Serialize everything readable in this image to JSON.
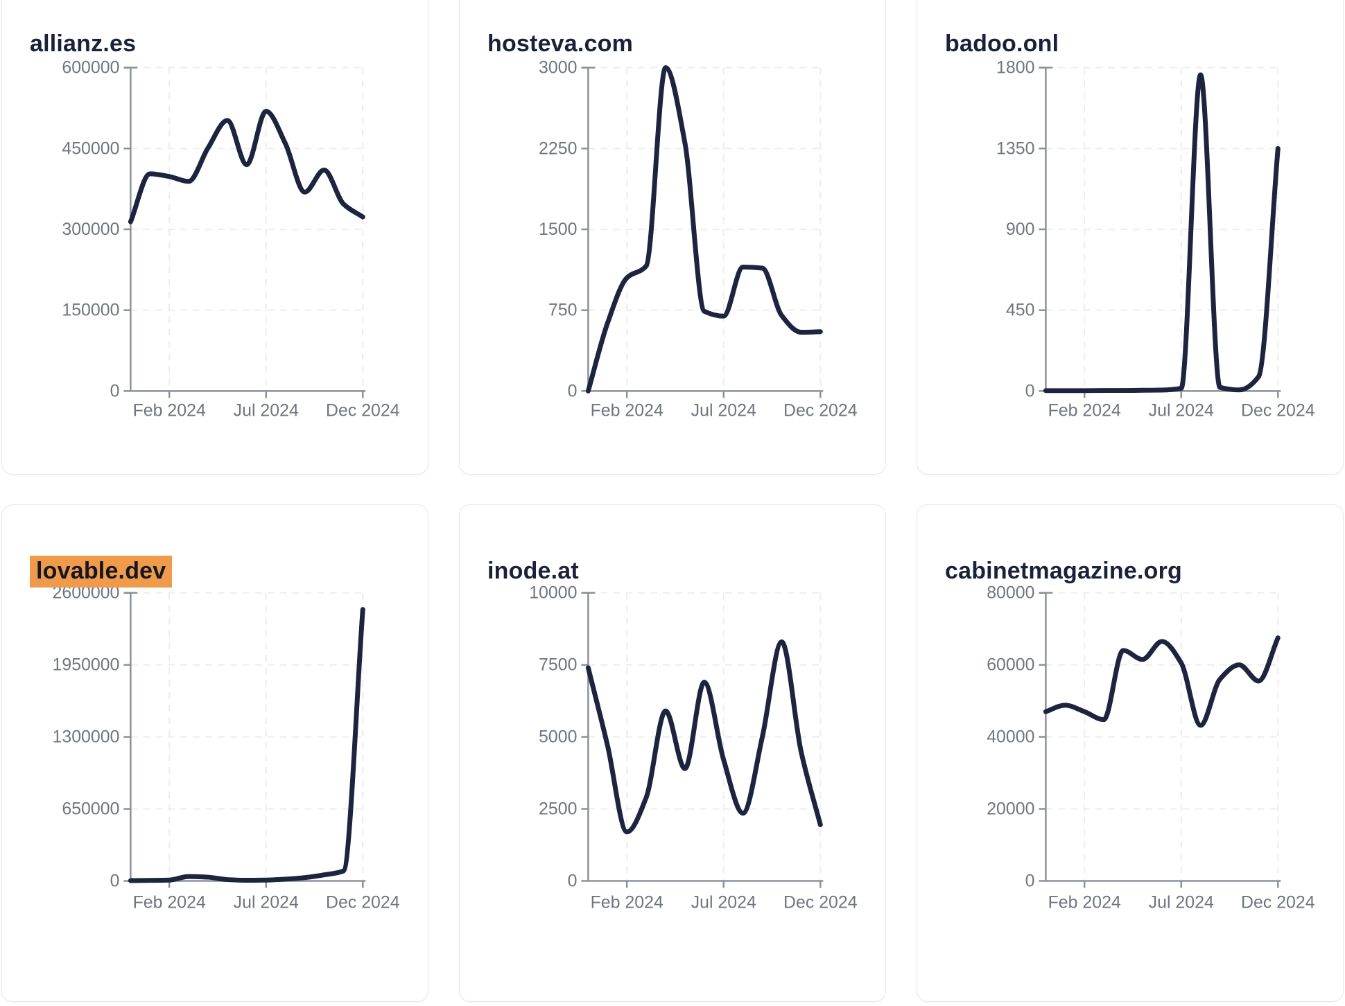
{
  "page": {
    "background": "#ffffff",
    "highlight_color": "#f09a4b",
    "line_color": "#1d2440",
    "axis_color": "#8b909b",
    "tick_text_color": "#6f7580",
    "grid_color": "#ededf0",
    "title_color": "#1a2138"
  },
  "chart_data": [
    {
      "type": "line",
      "title": "allianz.es",
      "title_highlighted": false,
      "row": 1,
      "x": [
        "Dec 2023",
        "Jan 2024",
        "Feb 2024",
        "Mar 2024",
        "Apr 2024",
        "May 2024",
        "Jun 2024",
        "Jul 2024",
        "Aug 2024",
        "Sep 2024",
        "Oct 2024",
        "Nov 2024",
        "Dec 2024"
      ],
      "values": [
        314000,
        403000,
        398000,
        389000,
        451000,
        502000,
        420000,
        519000,
        459000,
        369000,
        410000,
        347000,
        323000
      ],
      "x_tick_labels": [
        "Feb 2024",
        "Jul 2024",
        "Dec 2024"
      ],
      "x_tick_month_index": [
        2,
        7,
        12
      ],
      "yticks": [
        0,
        150000,
        300000,
        450000,
        600000
      ],
      "ylim": [
        0,
        600000
      ],
      "grid": "dashed",
      "legend": "none"
    },
    {
      "type": "line",
      "title": "hosteva.com",
      "title_highlighted": false,
      "row": 1,
      "x": [
        "Dec 2023",
        "Jan 2024",
        "Feb 2024",
        "Mar 2024",
        "Apr 2024",
        "May 2024",
        "Jun 2024",
        "Jul 2024",
        "Aug 2024",
        "Sep 2024",
        "Oct 2024",
        "Nov 2024",
        "Dec 2024"
      ],
      "values": [
        0,
        630,
        1050,
        1160,
        3000,
        2300,
        740,
        695,
        1150,
        1140,
        700,
        545,
        550
      ],
      "x_tick_labels": [
        "Feb 2024",
        "Jul 2024",
        "Dec 2024"
      ],
      "x_tick_month_index": [
        2,
        7,
        12
      ],
      "yticks": [
        0,
        750,
        1500,
        2250,
        3000
      ],
      "ylim": [
        0,
        3000
      ],
      "grid": "dashed",
      "legend": "none"
    },
    {
      "type": "line",
      "title": "badoo.onl",
      "title_highlighted": false,
      "row": 1,
      "x": [
        "Dec 2023",
        "Jan 2024",
        "Feb 2024",
        "Mar 2024",
        "Apr 2024",
        "May 2024",
        "Jun 2024",
        "Jul 2024",
        "Aug 2024",
        "Sep 2024",
        "Oct 2024",
        "Nov 2024",
        "Dec 2024"
      ],
      "values": [
        2,
        2,
        2,
        3,
        3,
        4,
        5,
        15,
        1760,
        20,
        6,
        80,
        1350
      ],
      "x_tick_labels": [
        "Feb 2024",
        "Jul 2024",
        "Dec 2024"
      ],
      "x_tick_month_index": [
        2,
        7,
        12
      ],
      "yticks": [
        0,
        450,
        900,
        1350,
        1800
      ],
      "ylim": [
        0,
        1800
      ],
      "grid": "dashed",
      "legend": "none"
    },
    {
      "type": "line",
      "title": "lovable.dev",
      "title_highlighted": true,
      "row": 2,
      "x": [
        "Dec 2023",
        "Jan 2024",
        "Feb 2024",
        "Mar 2024",
        "Apr 2024",
        "May 2024",
        "Jun 2024",
        "Jul 2024",
        "Aug 2024",
        "Sep 2024",
        "Oct 2024",
        "Nov 2024",
        "Dec 2024"
      ],
      "values": [
        3000,
        5000,
        8000,
        40000,
        34000,
        12000,
        6000,
        8000,
        16000,
        30000,
        55000,
        90000,
        2450000
      ],
      "x_tick_labels": [
        "Feb 2024",
        "Jul 2024",
        "Dec 2024"
      ],
      "x_tick_month_index": [
        2,
        7,
        12
      ],
      "yticks": [
        0,
        650000,
        1300000,
        1950000,
        2600000
      ],
      "ylim": [
        0,
        2600000
      ],
      "grid": "dashed",
      "legend": "none"
    },
    {
      "type": "line",
      "title": "inode.at",
      "title_highlighted": false,
      "row": 2,
      "x": [
        "Dec 2023",
        "Jan 2024",
        "Feb 2024",
        "Mar 2024",
        "Apr 2024",
        "May 2024",
        "Jun 2024",
        "Jul 2024",
        "Aug 2024",
        "Sep 2024",
        "Oct 2024",
        "Nov 2024",
        "Dec 2024"
      ],
      "values": [
        7400,
        4700,
        1700,
        2900,
        5900,
        3900,
        6900,
        4200,
        2350,
        5000,
        8300,
        4500,
        1950
      ],
      "x_tick_labels": [
        "Feb 2024",
        "Jul 2024",
        "Dec 2024"
      ],
      "x_tick_month_index": [
        2,
        7,
        12
      ],
      "yticks": [
        0,
        2500,
        5000,
        7500,
        10000
      ],
      "ylim": [
        0,
        10000
      ],
      "grid": "dashed",
      "legend": "none"
    },
    {
      "type": "line",
      "title": "cabinetmagazine.org",
      "title_highlighted": false,
      "row": 2,
      "x": [
        "Dec 2023",
        "Jan 2024",
        "Feb 2024",
        "Mar 2024",
        "Apr 2024",
        "May 2024",
        "Jun 2024",
        "Jul 2024",
        "Aug 2024",
        "Sep 2024",
        "Oct 2024",
        "Nov 2024",
        "Dec 2024"
      ],
      "values": [
        47000,
        48800,
        47000,
        44800,
        64000,
        61500,
        66500,
        60500,
        43200,
        56000,
        60000,
        55500,
        67500
      ],
      "x_tick_labels": [
        "Feb 2024",
        "Jul 2024",
        "Dec 2024"
      ],
      "x_tick_month_index": [
        2,
        7,
        12
      ],
      "yticks": [
        0,
        20000,
        40000,
        60000,
        80000
      ],
      "ylim": [
        0,
        80000
      ],
      "grid": "dashed",
      "legend": "none"
    }
  ]
}
